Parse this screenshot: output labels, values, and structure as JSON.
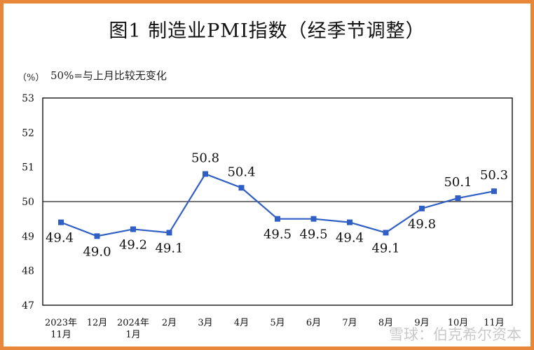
{
  "chart_data": {
    "type": "line",
    "title": "图1  制造业PMI指数（经季节调整）",
    "ylabel": "（%）",
    "annotation": "50%=与上月比较无变化",
    "categories": [
      "2023年\n11月",
      "12月",
      "2024年\n1月",
      "2月",
      "3月",
      "4月",
      "5月",
      "6月",
      "7月",
      "8月",
      "9月",
      "10月",
      "11月"
    ],
    "values": [
      49.4,
      49.0,
      49.2,
      49.1,
      50.8,
      50.4,
      49.5,
      49.5,
      49.4,
      49.1,
      49.8,
      50.1,
      50.3
    ],
    "ylim": [
      47,
      53
    ],
    "yticks": [
      47,
      48,
      49,
      50,
      51,
      52,
      53
    ],
    "reference_line": 50,
    "grid": false,
    "series_color": "#2f5fc4"
  },
  "watermark": "雪球：伯克希尔资本"
}
